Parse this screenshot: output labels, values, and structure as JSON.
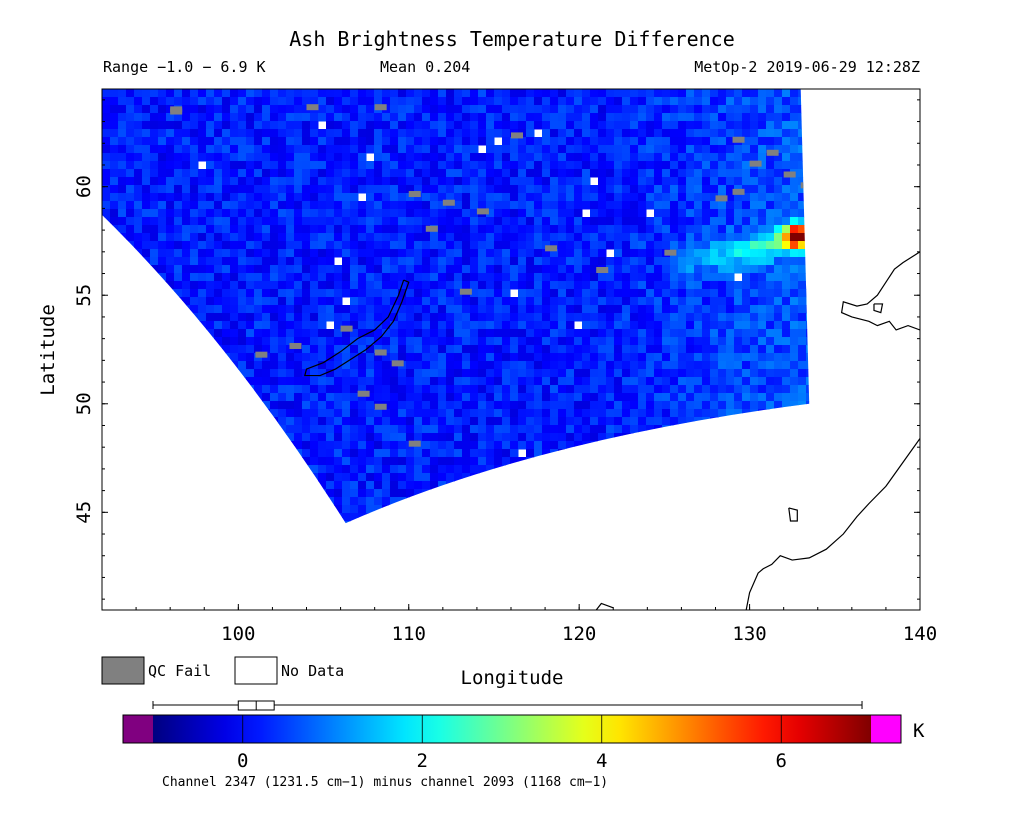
{
  "chart_data": {
    "type": "heatmap",
    "title": "Ash Brightness Temperature Difference",
    "subtitle": {
      "range": "Range −1.0 − 6.9 K",
      "mean": "Mean 0.204",
      "source": "MetOp-2 2019-06-29 12:28Z"
    },
    "xlabel": "Longitude",
    "ylabel": "Latitude",
    "xlim": [
      92,
      140
    ],
    "ylim": [
      40.5,
      64.5
    ],
    "xticks": [
      100,
      110,
      120,
      130,
      140
    ],
    "yticks": [
      45,
      50,
      55,
      60
    ],
    "grid": false,
    "swath": {
      "northwest_corner": [
        92,
        64.5
      ],
      "northeast_corner": [
        133,
        64.5
      ],
      "west_edge_entry": [
        92,
        58.7
      ],
      "south_corner": [
        106.3,
        44.5
      ],
      "southeast_corner": [
        133.5,
        50.0
      ],
      "background_value_K": 0.2,
      "hotspot": {
        "lon": 132.5,
        "lat": 57.9,
        "value_K": 6.9
      },
      "plume_axis": {
        "from": [
          126,
          56.6
        ],
        "to": [
          133,
          57.9
        ],
        "value_K": 2.0
      }
    },
    "legend": {
      "qc_fail": "QC Fail",
      "no_data": "No Data",
      "qc_fail_color": "#808080",
      "no_data_color": "#ffffff"
    },
    "colorbar": {
      "vmin": -1.0,
      "vmax": 7.0,
      "ticks": [
        0,
        2,
        4,
        6
      ],
      "unit": "K",
      "under_color": "#800080",
      "over_color": "#ff00ff",
      "colormap": "jet",
      "boxplot": {
        "min": -1.0,
        "q1": -0.05,
        "median": 0.15,
        "q3": 0.35,
        "max": 6.9
      },
      "caption": "Channel 2347 (1231.5 cm−1) minus channel 2093 (1168 cm−1)"
    }
  }
}
